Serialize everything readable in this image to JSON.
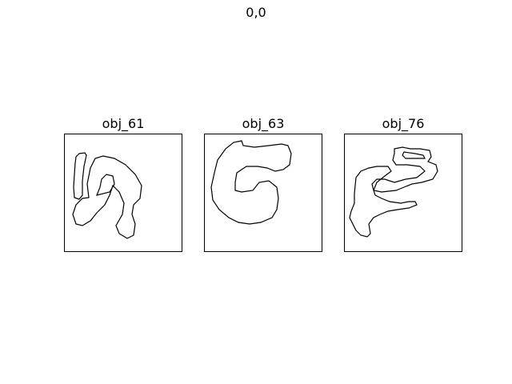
{
  "figure": {
    "title": "0,0"
  },
  "panels": [
    {
      "title": "obj_61"
    },
    {
      "title": "obj_63"
    },
    {
      "title": "obj_76"
    }
  ],
  "colors": {
    "outline": "#000000",
    "background": "#ffffff"
  }
}
